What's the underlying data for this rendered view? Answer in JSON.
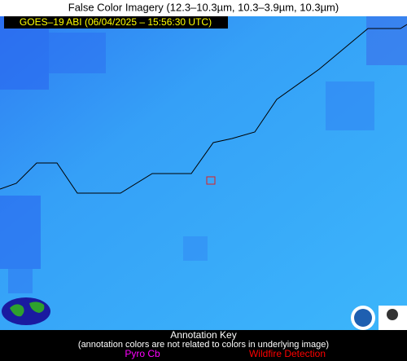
{
  "header": {
    "title": "False Color Imagery (12.3–10.3µm, 10.3–3.9µm, 10.3µm)",
    "timestamp": "GOES–19 ABI (06/04/2025 – 15:56:30 UTC)"
  },
  "annotation_key": {
    "title": "Annotation Key",
    "note": "(annotation colors are not related to colors in underlying image)",
    "items": [
      "Pyro Cb",
      "Wildfire Detection"
    ]
  }
}
